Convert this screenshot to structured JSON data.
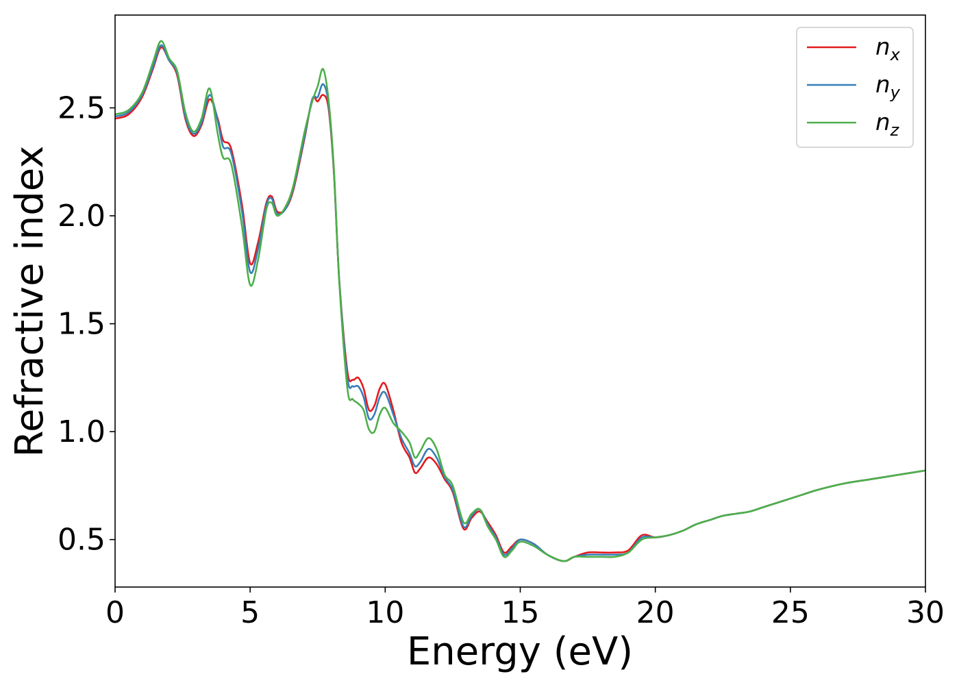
{
  "chart_data": {
    "type": "line",
    "xlabel": "Energy (eV)",
    "ylabel": "Refractive index",
    "xlim": [
      0,
      30
    ],
    "ylim": [
      0.28,
      2.93
    ],
    "xticks": [
      0,
      5,
      10,
      15,
      20,
      25,
      30
    ],
    "xtick_labels": [
      "0",
      "5",
      "10",
      "15",
      "20",
      "25",
      "30"
    ],
    "yticks": [
      0.5,
      1.0,
      1.5,
      2.0,
      2.5
    ],
    "ytick_labels": [
      "0.5",
      "1.0",
      "1.5",
      "2.0",
      "2.5"
    ],
    "grid": false,
    "legend_position": "top-right",
    "series": [
      {
        "name": "n",
        "subscript": "x",
        "color": "#e41a1c",
        "x": [
          0,
          0.5,
          1.0,
          1.4,
          1.7,
          2.0,
          2.3,
          2.6,
          2.9,
          3.2,
          3.5,
          3.8,
          4.0,
          4.3,
          4.7,
          5.0,
          5.3,
          5.6,
          5.8,
          6.0,
          6.3,
          6.6,
          7.0,
          7.3,
          7.5,
          7.7,
          7.9,
          8.1,
          8.3,
          8.6,
          8.8,
          9.0,
          9.2,
          9.4,
          9.6,
          9.8,
          10.0,
          10.3,
          10.6,
          10.9,
          11.1,
          11.3,
          11.6,
          11.9,
          12.2,
          12.5,
          12.9,
          13.2,
          13.5,
          13.8,
          14.1,
          14.4,
          14.7,
          15.0,
          15.5,
          16.0,
          16.6,
          17.0,
          17.5,
          18.0,
          18.5,
          19.0,
          19.5,
          20.0,
          20.5,
          21.0,
          21.5,
          22.0,
          22.5,
          23.0,
          23.5,
          24.0,
          24.5,
          25.0,
          25.5,
          26.0,
          27.0,
          28.0,
          29.0,
          30.0
        ],
        "y": [
          2.45,
          2.47,
          2.55,
          2.68,
          2.78,
          2.72,
          2.65,
          2.45,
          2.37,
          2.42,
          2.54,
          2.45,
          2.35,
          2.31,
          2.05,
          1.78,
          1.88,
          2.06,
          2.09,
          2.02,
          2.03,
          2.12,
          2.35,
          2.54,
          2.53,
          2.56,
          2.5,
          2.2,
          1.7,
          1.28,
          1.24,
          1.25,
          1.2,
          1.1,
          1.12,
          1.2,
          1.22,
          1.1,
          0.95,
          0.88,
          0.81,
          0.83,
          0.88,
          0.85,
          0.78,
          0.72,
          0.55,
          0.6,
          0.63,
          0.58,
          0.52,
          0.44,
          0.47,
          0.5,
          0.48,
          0.43,
          0.4,
          0.42,
          0.44,
          0.44,
          0.44,
          0.45,
          0.52,
          0.51,
          0.52,
          0.54,
          0.57,
          0.59,
          0.61,
          0.62,
          0.63,
          0.65,
          0.67,
          0.69,
          0.71,
          0.73,
          0.76,
          0.78,
          0.8,
          0.82
        ]
      },
      {
        "name": "n",
        "subscript": "y",
        "color": "#377eb8",
        "x": [
          0,
          0.5,
          1.0,
          1.4,
          1.7,
          2.0,
          2.3,
          2.6,
          2.9,
          3.2,
          3.5,
          3.8,
          4.0,
          4.3,
          4.7,
          5.0,
          5.3,
          5.6,
          5.8,
          6.0,
          6.3,
          6.6,
          7.0,
          7.3,
          7.5,
          7.7,
          7.9,
          8.1,
          8.3,
          8.6,
          8.8,
          9.0,
          9.2,
          9.4,
          9.6,
          9.8,
          10.0,
          10.3,
          10.6,
          10.9,
          11.1,
          11.3,
          11.6,
          11.9,
          12.2,
          12.5,
          12.9,
          13.2,
          13.5,
          13.8,
          14.1,
          14.4,
          14.7,
          15.0,
          15.5,
          16.0,
          16.6,
          17.0,
          17.5,
          18.0,
          18.5,
          19.0,
          19.5,
          20.0,
          20.5,
          21.0,
          21.5,
          22.0,
          22.5,
          23.0,
          23.5,
          24.0,
          24.5,
          25.0,
          25.5,
          26.0,
          27.0,
          28.0,
          29.0,
          30.0
        ],
        "y": [
          2.46,
          2.48,
          2.56,
          2.69,
          2.79,
          2.72,
          2.66,
          2.46,
          2.38,
          2.43,
          2.56,
          2.44,
          2.32,
          2.29,
          2.02,
          1.74,
          1.85,
          2.05,
          2.08,
          2.01,
          2.03,
          2.13,
          2.36,
          2.54,
          2.55,
          2.61,
          2.52,
          2.21,
          1.7,
          1.25,
          1.21,
          1.21,
          1.16,
          1.06,
          1.08,
          1.16,
          1.18,
          1.08,
          0.97,
          0.9,
          0.84,
          0.86,
          0.92,
          0.88,
          0.79,
          0.73,
          0.56,
          0.61,
          0.64,
          0.57,
          0.51,
          0.43,
          0.46,
          0.5,
          0.48,
          0.43,
          0.4,
          0.42,
          0.43,
          0.43,
          0.43,
          0.44,
          0.51,
          0.51,
          0.52,
          0.54,
          0.57,
          0.59,
          0.61,
          0.62,
          0.63,
          0.65,
          0.67,
          0.69,
          0.71,
          0.73,
          0.76,
          0.78,
          0.8,
          0.82
        ]
      },
      {
        "name": "n",
        "subscript": "z",
        "color": "#4daf4a",
        "x": [
          0,
          0.5,
          1.0,
          1.4,
          1.7,
          2.0,
          2.3,
          2.6,
          2.9,
          3.2,
          3.5,
          3.8,
          4.0,
          4.3,
          4.7,
          5.0,
          5.3,
          5.6,
          5.8,
          6.0,
          6.3,
          6.6,
          7.0,
          7.3,
          7.5,
          7.7,
          7.9,
          8.1,
          8.3,
          8.6,
          8.8,
          9.0,
          9.2,
          9.4,
          9.6,
          9.8,
          10.0,
          10.3,
          10.6,
          10.9,
          11.1,
          11.3,
          11.6,
          11.9,
          12.2,
          12.5,
          12.9,
          13.2,
          13.5,
          13.8,
          14.1,
          14.4,
          14.7,
          15.0,
          15.5,
          16.0,
          16.6,
          17.0,
          17.5,
          18.0,
          18.5,
          19.0,
          19.5,
          20.0,
          20.5,
          21.0,
          21.5,
          22.0,
          22.5,
          23.0,
          23.5,
          24.0,
          24.5,
          25.0,
          25.5,
          26.0,
          27.0,
          28.0,
          29.0,
          30.0
        ],
        "y": [
          2.47,
          2.49,
          2.57,
          2.71,
          2.81,
          2.73,
          2.67,
          2.48,
          2.39,
          2.45,
          2.59,
          2.38,
          2.27,
          2.24,
          1.95,
          1.68,
          1.8,
          2.03,
          2.06,
          2.0,
          2.04,
          2.14,
          2.38,
          2.53,
          2.6,
          2.68,
          2.54,
          2.22,
          1.69,
          1.2,
          1.15,
          1.13,
          1.1,
          1.01,
          1.0,
          1.08,
          1.11,
          1.04,
          1.0,
          0.95,
          0.88,
          0.91,
          0.97,
          0.92,
          0.8,
          0.75,
          0.58,
          0.62,
          0.64,
          0.56,
          0.5,
          0.42,
          0.45,
          0.49,
          0.47,
          0.43,
          0.4,
          0.42,
          0.42,
          0.42,
          0.42,
          0.44,
          0.5,
          0.51,
          0.52,
          0.54,
          0.57,
          0.59,
          0.61,
          0.62,
          0.63,
          0.65,
          0.67,
          0.69,
          0.71,
          0.73,
          0.76,
          0.78,
          0.8,
          0.82
        ]
      }
    ]
  }
}
